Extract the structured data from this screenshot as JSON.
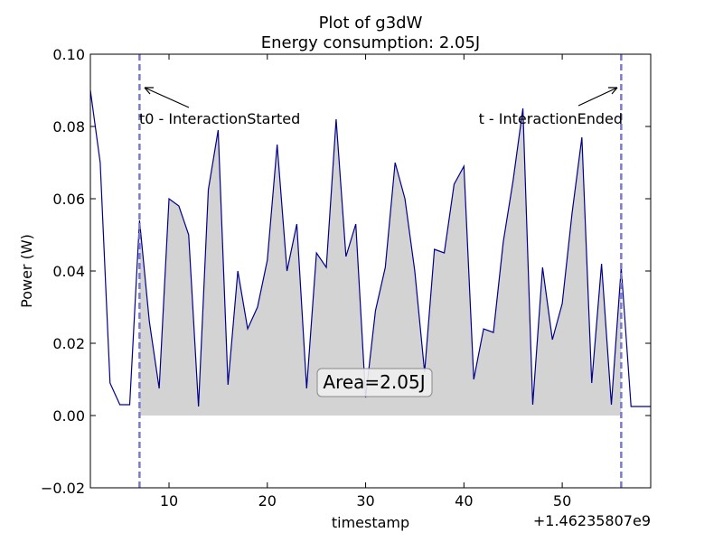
{
  "chart_data": {
    "type": "area",
    "title": "Plot of g3dW",
    "subtitle": "Energy consumption: 2.05J",
    "xlabel": "timestamp",
    "ylabel": "Power (W)",
    "x_offset_label": "+1.46235807e9",
    "xlim": [
      2,
      59
    ],
    "ylim": [
      -0.02,
      0.1
    ],
    "xticks": [
      10,
      20,
      30,
      40,
      50
    ],
    "yticks": [
      "−0.02",
      "0.00",
      "0.02",
      "0.04",
      "0.06",
      "0.08",
      "0.10"
    ],
    "ytick_values": [
      -0.02,
      0.0,
      0.02,
      0.04,
      0.06,
      0.08,
      0.1
    ],
    "grid": false,
    "series": [
      {
        "x": [
          2,
          3,
          4,
          5,
          6,
          7,
          8,
          9,
          10,
          11,
          12,
          13,
          14,
          15,
          16,
          17,
          18,
          19,
          20,
          21,
          22,
          23,
          24,
          25,
          26,
          27,
          28,
          29,
          30,
          31,
          32,
          33,
          34,
          35,
          36,
          37,
          38,
          39,
          40,
          41,
          42,
          43,
          44,
          45,
          46,
          47,
          48,
          49,
          50,
          51,
          52,
          53,
          54,
          55,
          56,
          57,
          58,
          59
        ],
        "y": [
          0.09,
          0.07,
          0.009,
          0.003,
          0.003,
          0.054,
          0.026,
          0.0075,
          0.06,
          0.058,
          0.05,
          0.0025,
          0.0625,
          0.079,
          0.0085,
          0.04,
          0.024,
          0.03,
          0.043,
          0.075,
          0.04,
          0.053,
          0.0075,
          0.045,
          0.041,
          0.082,
          0.044,
          0.053,
          0.005,
          0.029,
          0.041,
          0.07,
          0.06,
          0.04,
          0.012,
          0.046,
          0.045,
          0.064,
          0.069,
          0.01,
          0.024,
          0.023,
          0.048,
          0.065,
          0.085,
          0.003,
          0.041,
          0.021,
          0.031,
          0.056,
          0.077,
          0.009,
          0.042,
          0.003,
          0.041,
          0.0025,
          0.0025,
          0.0025
        ]
      }
    ],
    "shaded_range": [
      7,
      56
    ],
    "shade_color": "#d3d3d3",
    "line_color": "#00008b",
    "vlines": [
      {
        "x": 7,
        "color": "#7a7acc"
      },
      {
        "x": 56,
        "color": "#7a7acc"
      }
    ],
    "annotations": [
      {
        "text": "t0 - InteractionStarted",
        "x": 7
      },
      {
        "text": "t - InteractionEnded",
        "x": 56
      }
    ],
    "area_label": "Area=2.05J"
  }
}
